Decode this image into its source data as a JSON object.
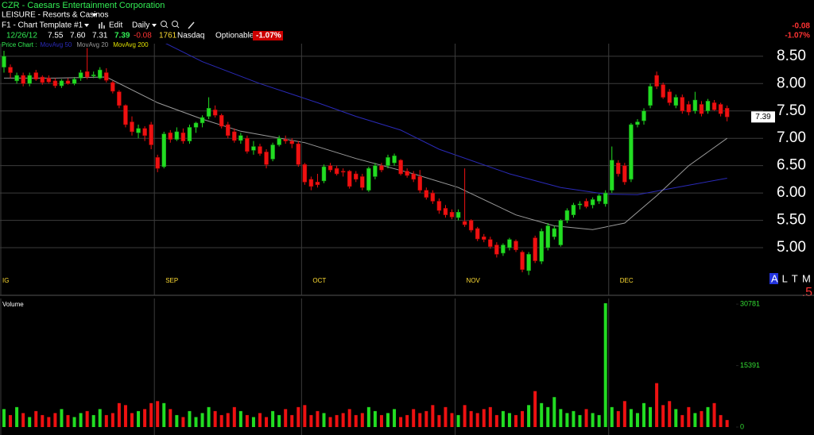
{
  "header": {
    "title": "CZR - Caesars Entertainment Corporation",
    "sector": "LEISURE - Resorts & Casinos",
    "template": "F1 - Chart Template #1",
    "edit": "Edit",
    "period": "Daily"
  },
  "quote": {
    "date": "12/26/12",
    "open": "7.55",
    "high": "7.60",
    "low": "7.31",
    "last": "7.39",
    "change": "-0.08",
    "volume": "1761",
    "exchange": "Nasdaq",
    "optionable": "Optionable",
    "change_pct": "-1.07%"
  },
  "side_panel": {
    "change": "-0.08",
    "change_pct": "-1.07%",
    "flags": "A L T M L",
    "flag_value": ".5"
  },
  "chart_data": [
    {
      "type": "candlestick",
      "legend_label": "Price Chart :",
      "categories": [
        "IG",
        null,
        null,
        null,
        null,
        null,
        null,
        null,
        null,
        null,
        null,
        null,
        null,
        null,
        null,
        null,
        null,
        null,
        null,
        null,
        null,
        null,
        null,
        null,
        "SEP",
        null,
        null,
        null,
        null,
        null,
        null,
        null,
        null,
        null,
        null,
        null,
        null,
        null,
        null,
        null,
        null,
        null,
        null,
        null,
        null,
        null,
        null,
        "OCT",
        null,
        null,
        null,
        null,
        null,
        null,
        null,
        null,
        null,
        null,
        null,
        null,
        null,
        null,
        null,
        null,
        null,
        null,
        null,
        null,
        null,
        null,
        null,
        "NOV",
        null,
        null,
        null,
        null,
        null,
        null,
        null,
        null,
        null,
        null,
        null,
        null,
        null,
        null,
        null,
        null,
        null,
        null,
        null,
        null,
        null,
        null,
        null,
        "DEC",
        null,
        null,
        null,
        null,
        null,
        null,
        null,
        null,
        null,
        null,
        null,
        null,
        null,
        null,
        null,
        null,
        null,
        null
      ],
      "ohlc": [
        [
          8.3,
          8.6,
          8.2,
          8.5
        ],
        [
          8.3,
          8.35,
          8.1,
          8.2
        ],
        [
          8.05,
          8.2,
          8.0,
          8.15
        ],
        [
          8.15,
          8.2,
          7.95,
          8.0
        ],
        [
          8.0,
          8.2,
          7.95,
          8.15
        ],
        [
          8.2,
          8.25,
          8.05,
          8.08
        ],
        [
          8.12,
          8.15,
          7.98,
          8.02
        ],
        [
          8.1,
          8.15,
          8.0,
          8.03
        ],
        [
          8.05,
          8.1,
          7.92,
          7.96
        ],
        [
          7.96,
          8.08,
          7.92,
          8.05
        ],
        [
          8.05,
          8.1,
          7.98,
          8.0
        ],
        [
          8.0,
          8.12,
          7.97,
          8.08
        ],
        [
          8.1,
          8.25,
          8.05,
          8.2
        ],
        [
          8.22,
          8.65,
          8.08,
          8.12
        ],
        [
          8.14,
          8.22,
          8.1,
          8.16
        ],
        [
          8.1,
          8.3,
          8.08,
          8.25
        ],
        [
          8.2,
          8.28,
          8.02,
          8.06
        ],
        [
          8.02,
          8.05,
          7.82,
          7.86
        ],
        [
          7.85,
          7.88,
          7.55,
          7.6
        ],
        [
          7.6,
          7.62,
          7.2,
          7.25
        ],
        [
          7.3,
          7.4,
          7.05,
          7.12
        ],
        [
          7.1,
          7.25,
          7.0,
          7.18
        ],
        [
          7.18,
          7.22,
          6.95,
          7.05
        ],
        [
          7.25,
          7.3,
          6.8,
          6.88
        ],
        [
          6.65,
          6.7,
          6.38,
          6.45
        ],
        [
          6.48,
          7.12,
          6.45,
          7.08
        ],
        [
          7.1,
          7.15,
          6.92,
          6.98
        ],
        [
          6.98,
          7.2,
          6.95,
          7.12
        ],
        [
          7.1,
          7.18,
          6.9,
          6.95
        ],
        [
          6.95,
          7.25,
          6.9,
          7.2
        ],
        [
          7.2,
          7.3,
          7.1,
          7.28
        ],
        [
          7.28,
          7.42,
          7.2,
          7.38
        ],
        [
          7.4,
          7.75,
          7.35,
          7.55
        ],
        [
          7.52,
          7.6,
          7.38,
          7.42
        ],
        [
          7.42,
          7.45,
          7.18,
          7.22
        ],
        [
          7.25,
          7.3,
          7.0,
          7.05
        ],
        [
          7.12,
          7.18,
          6.92,
          6.96
        ],
        [
          6.96,
          7.1,
          6.9,
          7.05
        ],
        [
          7.0,
          7.05,
          6.72,
          6.76
        ],
        [
          6.78,
          6.95,
          6.7,
          6.85
        ],
        [
          6.85,
          6.9,
          6.68,
          6.72
        ],
        [
          6.75,
          6.8,
          6.45,
          6.52
        ],
        [
          6.62,
          6.92,
          6.58,
          6.88
        ],
        [
          6.88,
          7.05,
          6.85,
          7.0
        ],
        [
          6.98,
          7.05,
          6.9,
          6.95
        ],
        [
          6.95,
          7.0,
          6.82,
          6.9
        ],
        [
          6.9,
          6.95,
          6.48,
          6.52
        ],
        [
          6.52,
          6.55,
          6.15,
          6.2
        ],
        [
          6.25,
          6.3,
          6.05,
          6.12
        ],
        [
          6.2,
          6.35,
          6.1,
          6.15
        ],
        [
          6.22,
          6.52,
          6.18,
          6.48
        ],
        [
          6.5,
          6.55,
          6.38,
          6.42
        ],
        [
          6.45,
          6.5,
          6.32,
          6.35
        ],
        [
          6.4,
          6.45,
          6.3,
          6.38
        ],
        [
          6.4,
          6.42,
          6.08,
          6.12
        ],
        [
          6.35,
          6.4,
          6.2,
          6.25
        ],
        [
          6.3,
          6.35,
          6.05,
          6.1
        ],
        [
          6.05,
          6.48,
          6.02,
          6.45
        ],
        [
          6.3,
          6.55,
          6.25,
          6.5
        ],
        [
          6.5,
          6.55,
          6.38,
          6.42
        ],
        [
          6.5,
          6.7,
          6.45,
          6.65
        ],
        [
          6.55,
          6.72,
          6.5,
          6.68
        ],
        [
          6.6,
          6.62,
          6.32,
          6.35
        ],
        [
          6.4,
          6.45,
          6.28,
          6.32
        ],
        [
          6.35,
          6.4,
          6.2,
          6.25
        ],
        [
          6.3,
          6.42,
          6.0,
          6.05
        ],
        [
          6.05,
          6.1,
          5.88,
          5.92
        ],
        [
          6.0,
          6.05,
          5.8,
          5.85
        ],
        [
          5.85,
          5.9,
          5.62,
          5.68
        ],
        [
          5.72,
          5.78,
          5.55,
          5.6
        ],
        [
          5.65,
          5.7,
          5.52,
          5.56
        ],
        [
          5.55,
          5.7,
          5.5,
          5.65
        ],
        [
          5.48,
          6.45,
          5.38,
          5.42
        ],
        [
          5.5,
          5.52,
          5.28,
          5.32
        ],
        [
          5.35,
          5.38,
          5.12,
          5.16
        ],
        [
          5.2,
          5.25,
          5.1,
          5.15
        ],
        [
          5.15,
          5.2,
          4.98,
          5.02
        ],
        [
          5.05,
          5.1,
          4.82,
          4.88
        ],
        [
          4.9,
          5.08,
          4.85,
          5.05
        ],
        [
          5.0,
          5.18,
          4.95,
          5.15
        ],
        [
          5.12,
          5.15,
          4.92,
          4.96
        ],
        [
          4.92,
          4.95,
          4.55,
          4.6
        ],
        [
          4.58,
          4.92,
          4.5,
          4.88
        ],
        [
          5.18,
          5.22,
          4.72,
          4.76
        ],
        [
          4.75,
          5.35,
          4.7,
          5.3
        ],
        [
          5.0,
          5.45,
          4.95,
          5.4
        ],
        [
          5.2,
          5.4,
          5.15,
          5.35
        ],
        [
          5.05,
          5.52,
          5.02,
          5.5
        ],
        [
          5.5,
          5.72,
          5.45,
          5.68
        ],
        [
          5.6,
          5.82,
          5.55,
          5.78
        ],
        [
          5.78,
          5.85,
          5.7,
          5.8
        ],
        [
          5.85,
          5.9,
          5.72,
          5.75
        ],
        [
          5.78,
          5.92,
          5.72,
          5.88
        ],
        [
          5.85,
          5.98,
          5.8,
          5.95
        ],
        [
          5.8,
          6.05,
          5.75,
          6.0
        ],
        [
          6.05,
          6.85,
          6.0,
          6.6
        ],
        [
          6.55,
          6.6,
          6.3,
          6.35
        ],
        [
          6.5,
          6.55,
          6.15,
          6.2
        ],
        [
          6.25,
          7.28,
          6.2,
          7.25
        ],
        [
          7.25,
          7.35,
          7.2,
          7.3
        ],
        [
          7.32,
          7.55,
          7.25,
          7.5
        ],
        [
          7.6,
          8.0,
          7.55,
          7.95
        ],
        [
          8.15,
          8.22,
          7.9,
          7.95
        ],
        [
          7.98,
          8.02,
          7.72,
          7.75
        ],
        [
          7.85,
          7.9,
          7.6,
          7.65
        ],
        [
          7.6,
          7.8,
          7.55,
          7.75
        ],
        [
          7.75,
          7.8,
          7.45,
          7.5
        ],
        [
          7.62,
          7.68,
          7.42,
          7.48
        ],
        [
          7.5,
          7.85,
          7.45,
          7.7
        ],
        [
          7.62,
          7.68,
          7.4,
          7.45
        ],
        [
          7.5,
          7.72,
          7.45,
          7.68
        ],
        [
          7.65,
          7.7,
          7.5,
          7.52
        ],
        [
          7.62,
          7.65,
          7.4,
          7.45
        ],
        [
          7.55,
          7.6,
          7.31,
          7.39
        ]
      ],
      "colors": {
        "up": "#22dd22",
        "down": "#ee1111"
      },
      "series": [
        {
          "name": "MovAvg 50",
          "color": "#2a2ab8",
          "x": [
            25,
            31,
            40,
            49,
            55,
            62,
            68,
            79,
            87,
            94,
            99,
            105,
            113
          ],
          "values": [
            8.75,
            8.4,
            8.0,
            7.65,
            7.4,
            7.15,
            6.8,
            6.35,
            6.1,
            5.98,
            5.97,
            6.1,
            6.27
          ]
        },
        {
          "name": "MovAvg 20",
          "color": "#9a9a9a",
          "x": [
            0,
            8,
            16,
            24,
            31,
            37,
            47,
            55,
            64,
            71,
            80,
            86,
            92,
            97,
            102,
            107,
            113
          ],
          "values": [
            8.1,
            8.1,
            8.12,
            7.65,
            7.35,
            7.13,
            6.92,
            6.63,
            6.35,
            6.1,
            5.6,
            5.4,
            5.33,
            5.45,
            5.95,
            6.5,
            7.0
          ]
        },
        {
          "name": "MovAvg 200",
          "color": "#e0e000",
          "x": [],
          "values": []
        }
      ],
      "ylim": [
        4.42,
        8.73
      ],
      "yticks": [
        {
          "value": 5,
          "label": "5.00"
        },
        {
          "value": 5.5,
          "label": "5.50"
        },
        {
          "value": 6,
          "label": "6.00"
        },
        {
          "value": 6.5,
          "label": "6.50"
        },
        {
          "value": 7,
          "label": "7.00"
        },
        {
          "value": 7.5,
          "label": "7.50"
        },
        {
          "value": 8,
          "label": "8.00"
        },
        {
          "value": 8.5,
          "label": "8.50"
        }
      ],
      "grid": true
    },
    {
      "type": "bar",
      "title": "Volume",
      "values": [
        4500,
        3000,
        5000,
        3500,
        2500,
        4000,
        3000,
        2500,
        3500,
        4500,
        3000,
        2500,
        3500,
        4000,
        3000,
        4500,
        3000,
        3500,
        6000,
        5500,
        3500,
        4000,
        4500,
        6000,
        6500,
        6000,
        4500,
        3000,
        2500,
        4000,
        2500,
        3500,
        5000,
        4000,
        3000,
        3500,
        5000,
        4000,
        3000,
        2500,
        3500,
        2500,
        4000,
        3000,
        4500,
        3000,
        5000,
        5500,
        3000,
        4000,
        3500,
        2500,
        3000,
        3500,
        4500,
        3000,
        3500,
        5000,
        4000,
        3000,
        3500,
        4500,
        2500,
        3000,
        4500,
        3500,
        4000,
        5500,
        3000,
        5000,
        3500,
        3000,
        5500,
        4000,
        3500,
        4500,
        5000,
        3000,
        4000,
        3500,
        3000,
        4000,
        5500,
        9000,
        6000,
        5000,
        7500,
        4500,
        3500,
        4000,
        3000,
        4500,
        3500,
        3000,
        31000,
        5000,
        4000,
        6500,
        4500,
        3500,
        6000,
        5000,
        11000,
        5500,
        6500,
        4500,
        3000,
        5000,
        3500,
        4000,
        5000,
        6000,
        3000,
        1761
      ],
      "ylim": [
        0,
        31800
      ],
      "yticks": [
        30781,
        15391,
        0
      ],
      "tick_color": "#33dd33",
      "grid": false
    }
  ]
}
